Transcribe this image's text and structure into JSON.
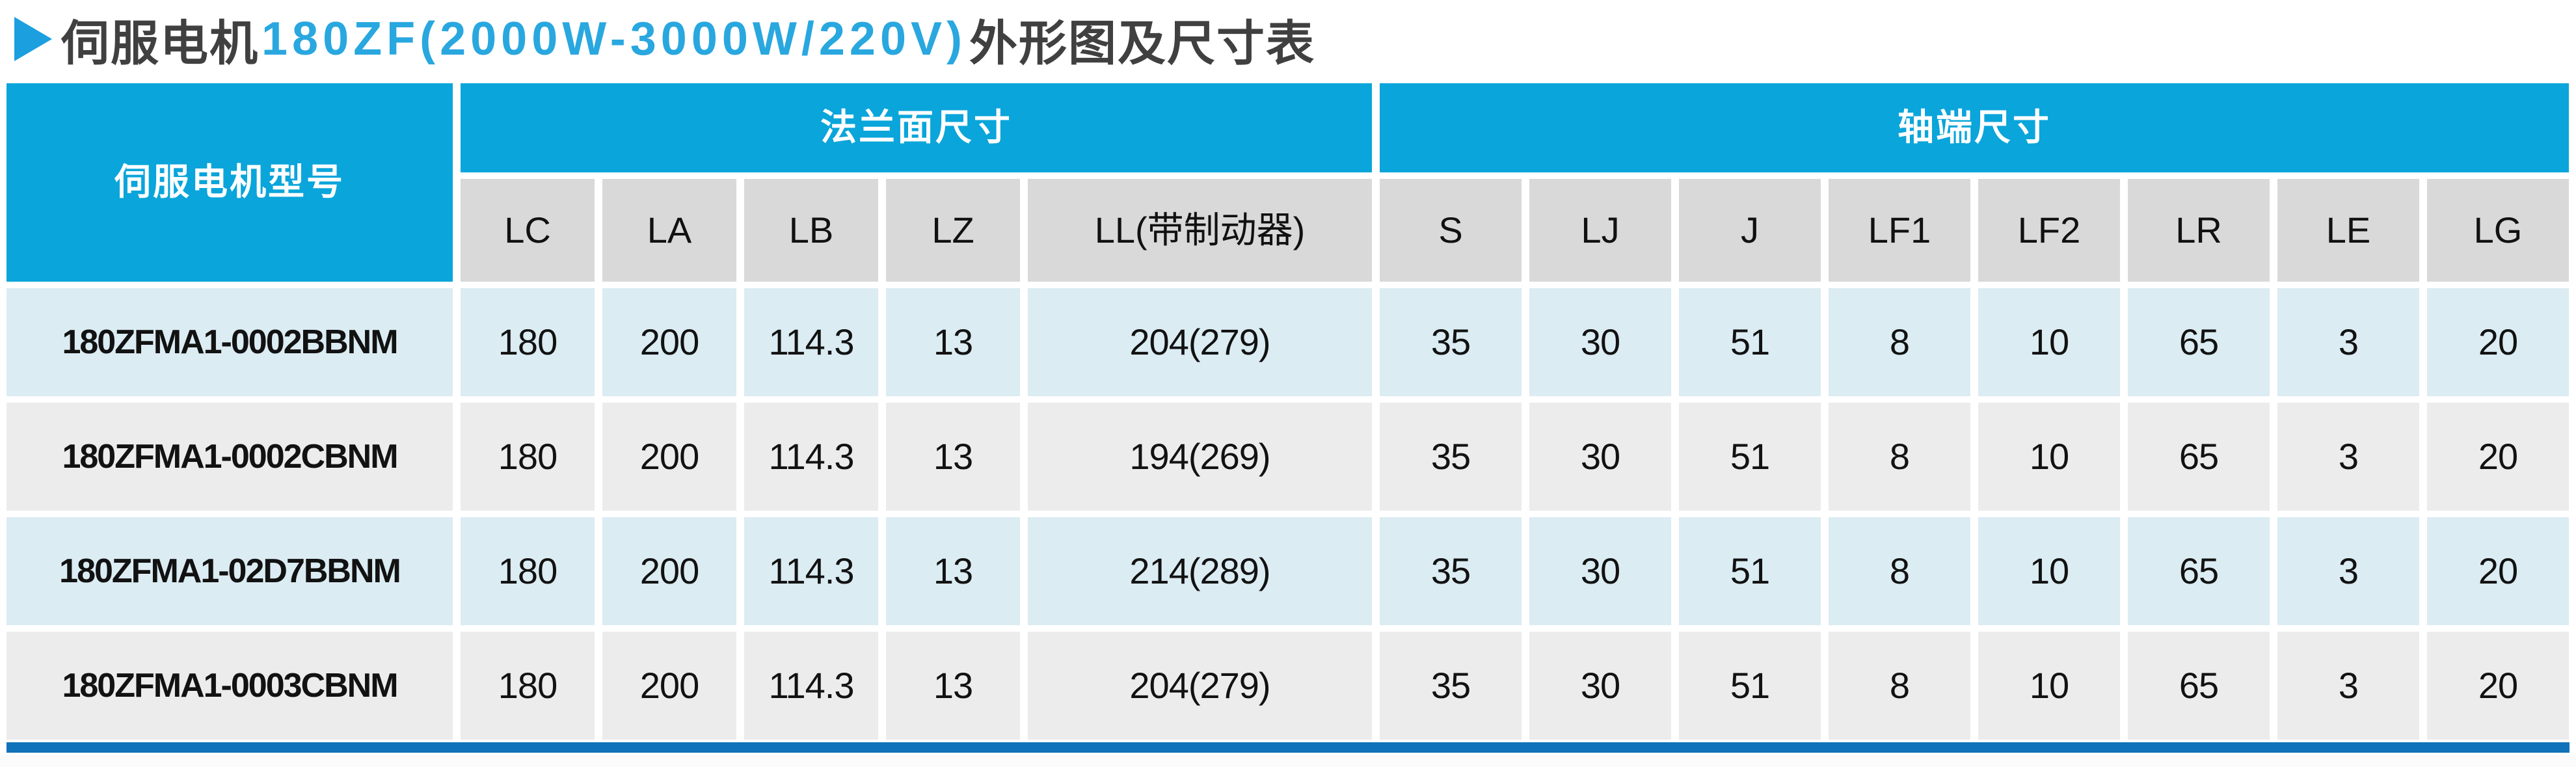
{
  "title": {
    "marker": "right-triangle",
    "part_servo": "伺服电机",
    "part_model": "180ZF(2000W-3000W/220V)",
    "part_suffix": "外形图及尺寸表"
  },
  "colors": {
    "header_blue": "#0aa5da",
    "subheader_gray": "#d9d9d9",
    "row_blue_tint": "#dbecf3",
    "row_gray": "#ececec",
    "accent_bar_blue": "#1072b9",
    "title_dark": "#404040",
    "title_blue": "#29a7df"
  },
  "table": {
    "model_header": "伺服电机型号",
    "groups": [
      {
        "label": "法兰面尺寸",
        "span": 5
      },
      {
        "label": "轴端尺寸",
        "span": 8
      }
    ],
    "columns": [
      "LC",
      "LA",
      "LB",
      "LZ",
      "LL(带制动器)",
      "S",
      "LJ",
      "J",
      "LF1",
      "LF2",
      "LR",
      "LE",
      "LG"
    ],
    "rows": [
      {
        "model": "180ZFMA1-0002BBNM",
        "values": [
          "180",
          "200",
          "114.3",
          "13",
          "204(279)",
          "35",
          "30",
          "51",
          "8",
          "10",
          "65",
          "3",
          "20"
        ]
      },
      {
        "model": "180ZFMA1-0002CBNM",
        "values": [
          "180",
          "200",
          "114.3",
          "13",
          "194(269)",
          "35",
          "30",
          "51",
          "8",
          "10",
          "65",
          "3",
          "20"
        ]
      },
      {
        "model": "180ZFMA1-02D7BBNM",
        "values": [
          "180",
          "200",
          "114.3",
          "13",
          "214(289)",
          "35",
          "30",
          "51",
          "8",
          "10",
          "65",
          "3",
          "20"
        ]
      },
      {
        "model": "180ZFMA1-0003CBNM",
        "values": [
          "180",
          "200",
          "114.3",
          "13",
          "204(279)",
          "35",
          "30",
          "51",
          "8",
          "10",
          "65",
          "3",
          "20"
        ]
      }
    ]
  }
}
